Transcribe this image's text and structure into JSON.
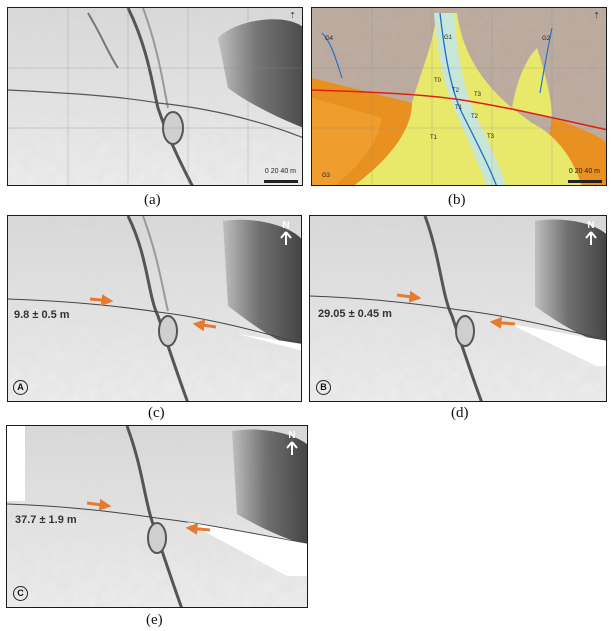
{
  "captions": {
    "a": "(a)",
    "b": "(b)",
    "c": "(c)",
    "d": "(d)",
    "e": "(e)"
  },
  "scale_bar": "0 20 40 m",
  "north": "N",
  "panel_b_labels": {
    "g1": "G1",
    "g2": "G2",
    "g3": "G3",
    "g4": "G4",
    "t0": "T0",
    "t1a": "T1",
    "t1b": "T1",
    "t2a": "T2",
    "t2b": "T2",
    "t3a": "T3",
    "t3b": "T3"
  },
  "offsets": {
    "c": {
      "badge": "A",
      "value": "9.8 ± 0.5 m"
    },
    "d": {
      "badge": "B",
      "value": "29.05 ± 0.45 m"
    },
    "e": {
      "badge": "C",
      "value": "37.7 ± 1.9 m"
    }
  },
  "colors": {
    "hillshade_light": "#eeeeee",
    "hillshade_dark": "#3a3a3a",
    "terrace_yellow": "#e8e86a",
    "fan_orange": "#e89020",
    "bedrock_brown": "#b9a79a",
    "river_blue": "#1a6fd0",
    "fault_red": "#e02010",
    "arrow_orange": "#e87a30"
  }
}
